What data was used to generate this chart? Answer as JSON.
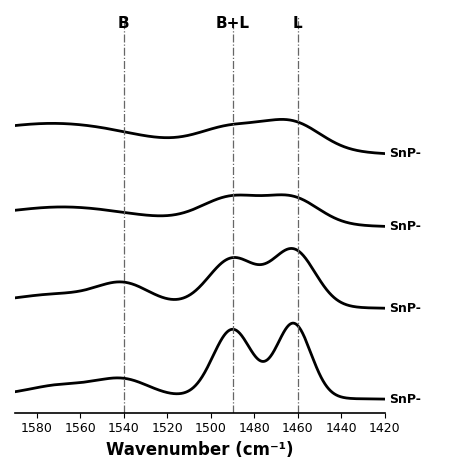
{
  "xmin": 1420,
  "xmax": 1590,
  "xlabel": "Wavenumber (cm⁻¹)",
  "xticks": [
    1580,
    1560,
    1540,
    1520,
    1500,
    1480,
    1460,
    1440,
    1420
  ],
  "dashed_lines": [
    1540,
    1490,
    1460
  ],
  "line_labels": [
    "B",
    "B+L",
    "L"
  ],
  "spectrum_labels": [
    "SnP-",
    "SnP-",
    "SnP-",
    "SnP-"
  ],
  "offsets": [
    2.7,
    1.9,
    1.0,
    0.0
  ],
  "background_color": "#ffffff",
  "line_color": "#000000",
  "dashed_color": "#666666"
}
